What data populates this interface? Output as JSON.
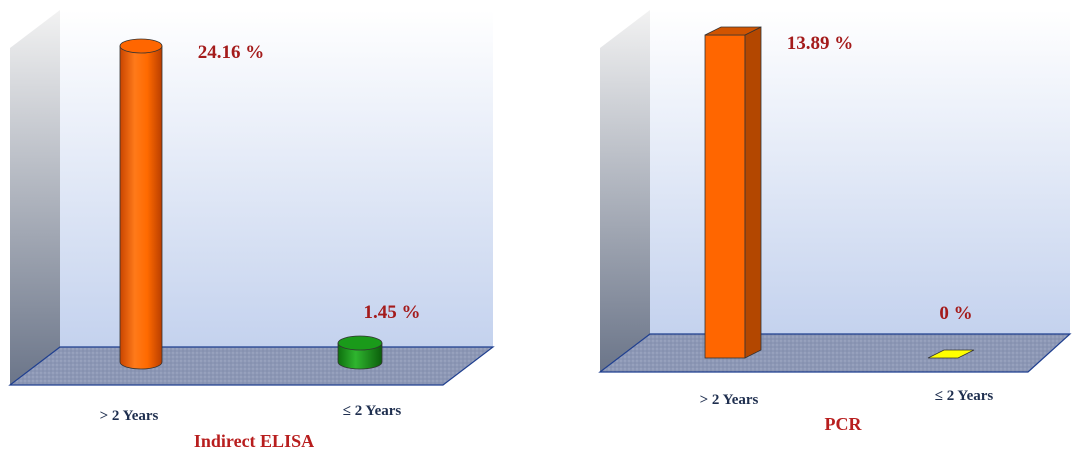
{
  "chart_data": [
    {
      "type": "bar",
      "title": "Indirect ELISA",
      "categories": [
        "> 2 Years",
        "≤ 2 Years"
      ],
      "values": [
        24.16,
        1.45
      ],
      "value_labels": [
        "24.16 %",
        "1.45 %"
      ],
      "bar_shape": "cylinder",
      "colors": [
        "#FF6600",
        "#1A9A1A"
      ],
      "ylim": [
        0,
        24.16
      ],
      "grid": false,
      "legend": "none"
    },
    {
      "type": "bar",
      "title": "PCR",
      "categories": [
        "> 2 Years",
        "≤ 2 Years"
      ],
      "values": [
        13.89,
        0
      ],
      "value_labels": [
        "13.89 %",
        "0 %"
      ],
      "bar_shape": "box",
      "colors": [
        "#FF6600",
        "#FFFF00"
      ],
      "ylim": [
        0,
        13.89
      ],
      "grid": false,
      "legend": "none"
    }
  ],
  "colors": {
    "value_label": "#A41B1B",
    "category_label": "#1F2F4F",
    "title": "#B81E1E",
    "floor": "#8C97B5",
    "back_wall_top": "#FFFFFF",
    "back_wall_bottom": "#C4D2EE"
  }
}
